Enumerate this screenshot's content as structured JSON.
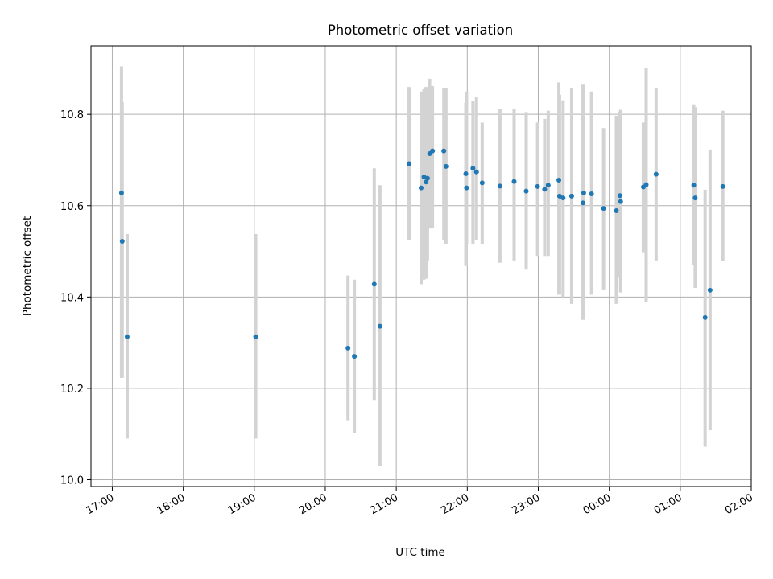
{
  "chart_data": {
    "type": "scatter",
    "title": "Photometric offset variation",
    "xlabel": "UTC time",
    "ylabel": "Photometric offset",
    "grid": true,
    "xlim": [
      16.7,
      26.0
    ],
    "ylim": [
      9.985,
      10.95
    ],
    "x_ticks": [
      {
        "value": 17,
        "label": "17:00"
      },
      {
        "value": 18,
        "label": "18:00"
      },
      {
        "value": 19,
        "label": "19:00"
      },
      {
        "value": 20,
        "label": "20:00"
      },
      {
        "value": 21,
        "label": "21:00"
      },
      {
        "value": 22,
        "label": "22:00"
      },
      {
        "value": 23,
        "label": "23:00"
      },
      {
        "value": 24,
        "label": "00:00"
      },
      {
        "value": 25,
        "label": "01:00"
      },
      {
        "value": 26,
        "label": "02:00"
      }
    ],
    "y_ticks": [
      {
        "value": 10.0,
        "label": "10.0"
      },
      {
        "value": 10.2,
        "label": "10.2"
      },
      {
        "value": 10.4,
        "label": "10.4"
      },
      {
        "value": 10.6,
        "label": "10.6"
      },
      {
        "value": 10.8,
        "label": "10.8"
      }
    ],
    "colors": {
      "point": "#1f77b4",
      "errorbar": "#d3d3d3",
      "grid": "#b0b0b0"
    },
    "series": [
      {
        "x": [
          17.13,
          17.14,
          17.21,
          19.02,
          20.32,
          20.41,
          20.69,
          20.77,
          21.18,
          21.35,
          21.39,
          21.42,
          21.44,
          21.47,
          21.51,
          21.67,
          21.7,
          21.98,
          21.99,
          22.08,
          22.13,
          22.21,
          22.46,
          22.66,
          22.83,
          22.99,
          23.09,
          23.14,
          23.29,
          23.3,
          23.35,
          23.47,
          23.63,
          23.64,
          23.75,
          23.92,
          24.1,
          24.15,
          24.16,
          24.48,
          24.52,
          24.66,
          25.19,
          25.21,
          25.35,
          25.42,
          25.6
        ],
        "y": [
          10.628,
          10.522,
          10.313,
          10.313,
          10.288,
          10.27,
          10.428,
          10.336,
          10.692,
          10.639,
          10.663,
          10.652,
          10.66,
          10.714,
          10.72,
          10.72,
          10.686,
          10.67,
          10.639,
          10.682,
          10.674,
          10.65,
          10.643,
          10.653,
          10.632,
          10.642,
          10.636,
          10.645,
          10.656,
          10.621,
          10.617,
          10.621,
          10.606,
          10.628,
          10.626,
          10.594,
          10.589,
          10.622,
          10.609,
          10.641,
          10.646,
          10.669,
          10.645,
          10.617,
          10.355,
          10.415,
          10.642
        ],
        "err_low": [
          10.223,
          10.223,
          10.09,
          10.09,
          10.13,
          10.103,
          10.173,
          10.03,
          10.524,
          10.428,
          10.438,
          10.44,
          10.48,
          10.55,
          10.55,
          10.525,
          10.515,
          10.468,
          10.515,
          10.515,
          10.525,
          10.515,
          10.475,
          10.48,
          10.46,
          10.49,
          10.49,
          10.49,
          10.405,
          10.405,
          10.4,
          10.385,
          10.35,
          10.43,
          10.405,
          10.415,
          10.385,
          10.443,
          10.41,
          10.498,
          10.39,
          10.48,
          10.47,
          10.42,
          10.072,
          10.108,
          10.478
        ],
        "err_high": [
          10.905,
          10.826,
          10.538,
          10.538,
          10.447,
          10.438,
          10.682,
          10.645,
          10.86,
          10.85,
          10.855,
          10.86,
          10.838,
          10.878,
          10.862,
          10.858,
          10.857,
          10.825,
          10.85,
          10.83,
          10.837,
          10.782,
          10.812,
          10.812,
          10.805,
          10.782,
          10.79,
          10.808,
          10.87,
          10.843,
          10.831,
          10.858,
          10.865,
          10.863,
          10.85,
          10.77,
          10.797,
          10.806,
          10.81,
          10.782,
          10.902,
          10.858,
          10.822,
          10.816,
          10.635,
          10.723,
          10.808
        ]
      }
    ]
  }
}
